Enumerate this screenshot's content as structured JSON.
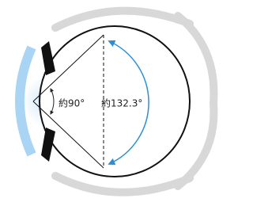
{
  "labels": {
    "inner_angle": "約90°",
    "outer_angle": "約132.3°"
  }
}
